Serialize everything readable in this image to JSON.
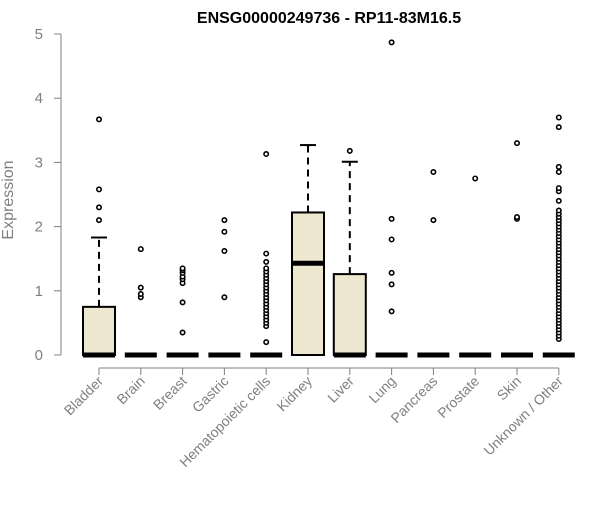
{
  "chart_data": {
    "type": "box",
    "title": "ENSG00000249736 - RP11-83M16.5",
    "xlabel": "",
    "ylabel": "Expression",
    "ylim": [
      0,
      5
    ],
    "yticks": [
      "0",
      "1",
      "2",
      "3",
      "4",
      "5"
    ],
    "box_fill": "#efe8d0",
    "categories": [
      "Bladder",
      "Brain",
      "Breast",
      "Gastric",
      "Hematopoietic cells",
      "Kidney",
      "Liver",
      "Lung",
      "Pancreas",
      "Prostate",
      "Skin",
      "Unknown / Other"
    ],
    "boxes": [
      {
        "q1": 0,
        "median": 0,
        "q3": 0.75,
        "whisker_low": 0,
        "whisker_high": 1.83,
        "outliers": [
          2.1,
          2.3,
          2.58,
          3.67
        ]
      },
      {
        "q1": 0,
        "median": 0,
        "q3": 0,
        "whisker_low": 0,
        "whisker_high": 0,
        "outliers": [
          0.9,
          0.95,
          1.05,
          1.65
        ]
      },
      {
        "q1": 0,
        "median": 0,
        "q3": 0,
        "whisker_low": 0,
        "whisker_high": 0,
        "outliers": [
          0.35,
          0.82,
          1.12,
          1.18,
          1.22,
          1.28,
          1.32,
          1.35
        ]
      },
      {
        "q1": 0,
        "median": 0,
        "q3": 0,
        "whisker_low": 0,
        "whisker_high": 0,
        "outliers": [
          0.9,
          1.62,
          1.92,
          2.1
        ]
      },
      {
        "q1": 0,
        "median": 0,
        "q3": 0,
        "whisker_low": 0,
        "whisker_high": 0,
        "outliers": [
          0.2,
          0.45,
          0.5,
          0.55,
          0.6,
          0.65,
          0.7,
          0.75,
          0.8,
          0.85,
          0.9,
          0.95,
          1.0,
          1.05,
          1.1,
          1.15,
          1.2,
          1.25,
          1.3,
          1.35,
          1.45,
          1.58,
          3.13
        ]
      },
      {
        "q1": 0,
        "median": 1.43,
        "q3": 2.22,
        "whisker_low": 0,
        "whisker_high": 3.27,
        "outliers": []
      },
      {
        "q1": 0,
        "median": 0,
        "q3": 1.26,
        "whisker_low": 0,
        "whisker_high": 3.01,
        "outliers": [
          3.18
        ]
      },
      {
        "q1": 0,
        "median": 0,
        "q3": 0,
        "whisker_low": 0,
        "whisker_high": 0,
        "outliers": [
          0.68,
          1.1,
          1.28,
          1.8,
          2.12,
          4.87
        ]
      },
      {
        "q1": 0,
        "median": 0,
        "q3": 0,
        "whisker_low": 0,
        "whisker_high": 0,
        "outliers": [
          2.1,
          2.85
        ]
      },
      {
        "q1": 0,
        "median": 0,
        "q3": 0,
        "whisker_low": 0,
        "whisker_high": 0,
        "outliers": [
          2.75
        ]
      },
      {
        "q1": 0,
        "median": 0,
        "q3": 0,
        "whisker_low": 0,
        "whisker_high": 0,
        "outliers": [
          2.12,
          2.15,
          3.3
        ]
      },
      {
        "q1": 0,
        "median": 0,
        "q3": 0,
        "whisker_low": 0,
        "whisker_high": 0,
        "outliers": [
          0.25,
          0.3,
          0.35,
          0.4,
          0.45,
          0.5,
          0.55,
          0.6,
          0.65,
          0.7,
          0.75,
          0.8,
          0.85,
          0.9,
          0.95,
          1.0,
          1.05,
          1.1,
          1.15,
          1.2,
          1.25,
          1.3,
          1.35,
          1.4,
          1.45,
          1.5,
          1.55,
          1.6,
          1.65,
          1.7,
          1.75,
          1.8,
          1.85,
          1.9,
          1.95,
          2.0,
          2.05,
          2.1,
          2.15,
          2.2,
          2.25,
          2.4,
          2.55,
          2.6,
          2.85,
          2.93,
          3.55,
          3.7
        ]
      }
    ]
  }
}
